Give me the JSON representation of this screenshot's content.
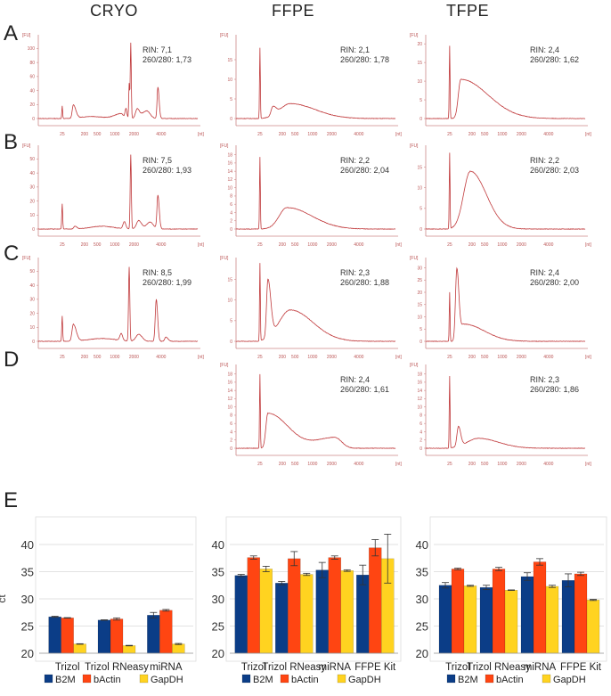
{
  "columns": [
    "CRYO",
    "FFPE",
    "TFPE"
  ],
  "rows": [
    "A",
    "B",
    "C",
    "D"
  ],
  "panel_e_label": "E",
  "chart_data": {
    "electropherograms": {
      "type": "line",
      "ylabel": "[FU]",
      "xlabel": "[nt]",
      "x_tick_labels": [
        "25",
        "200",
        "500",
        "1000",
        "2000",
        "4000"
      ],
      "x_tick_positions": [
        15,
        29,
        37,
        48,
        60,
        77
      ],
      "x_range": [
        0,
        100
      ],
      "line_color": "#c0393b",
      "panels": [
        {
          "row": 0,
          "col": 0,
          "rin": "RIN: 7,1",
          "ratio": "260/280: 1,73",
          "ylim": [
            0,
            112
          ],
          "yticks": [
            0,
            20,
            40,
            60,
            80,
            100
          ],
          "peaks": [
            [
              15,
              18,
              0.35,
              0.35
            ],
            [
              22,
              19,
              1.0,
              2.2
            ],
            [
              33,
              3,
              8,
              10
            ],
            [
              52,
              7,
              6,
              2
            ],
            [
              55,
              14,
              0.8,
              0.8
            ],
            [
              58,
              108,
              0.45,
              0.45
            ],
            [
              57,
              50,
              0.4,
              0.4
            ],
            [
              62,
              13,
              1.5,
              2
            ],
            [
              68,
              11,
              4,
              3
            ],
            [
              75,
              45,
              0.7,
              1.1
            ]
          ]
        },
        {
          "row": 0,
          "col": 1,
          "rin": "RIN: 2,1",
          "ratio": "260/280: 1,78",
          "ylim": [
            0,
            20
          ],
          "yticks": [
            0,
            5,
            10,
            15
          ],
          "peaks": [
            [
              15,
              18,
              0.35,
              0.35
            ],
            [
              23,
              2.2,
              1.5,
              3
            ],
            [
              34,
              3.8,
              9,
              22
            ]
          ]
        },
        {
          "row": 0,
          "col": 2,
          "rin": "RIN: 2,4",
          "ratio": "260/280: 1,62",
          "ylim": [
            0,
            21
          ],
          "yticks": [
            0,
            5,
            10,
            15,
            20
          ],
          "peaks": [
            [
              15,
              19.5,
              0.35,
              0.35
            ],
            [
              22,
              10.5,
              2.2,
              24
            ]
          ]
        },
        {
          "row": 1,
          "col": 0,
          "rin": "RIN: 7,5",
          "ratio": "260/280: 1,93",
          "ylim": [
            0,
            56
          ],
          "yticks": [
            0,
            10,
            20,
            30,
            40,
            50
          ],
          "peaks": [
            [
              15,
              18,
              0.4,
              0.4
            ],
            [
              23,
              2,
              1,
              1.5
            ],
            [
              40,
              2,
              10,
              10
            ],
            [
              54,
              5,
              1.2,
              1.2
            ],
            [
              58,
              53,
              0.5,
              0.5
            ],
            [
              63,
              6,
              2,
              2.5
            ],
            [
              70,
              5,
              3,
              3
            ],
            [
              75,
              24,
              0.8,
              1.2
            ]
          ]
        },
        {
          "row": 1,
          "col": 1,
          "rin": "RIN: 2,2",
          "ratio": "260/280: 2,04",
          "ylim": [
            0,
            19
          ],
          "yticks": [
            0,
            2,
            4,
            6,
            8,
            10,
            12,
            14,
            16,
            18
          ],
          "peaks": [
            [
              15,
              17.5,
              0.35,
              0.35
            ],
            [
              32,
              5.2,
              7,
              22
            ]
          ]
        },
        {
          "row": 1,
          "col": 2,
          "rin": "RIN: 2,2",
          "ratio": "260/280: 2,03",
          "ylim": [
            0,
            19
          ],
          "yticks": [
            0,
            5,
            10,
            15
          ],
          "peaks": [
            [
              15,
              18.5,
              0.35,
              0.35
            ],
            [
              28,
              14,
              6,
              14
            ]
          ]
        },
        {
          "row": 2,
          "col": 0,
          "rin": "RIN: 8,5",
          "ratio": "260/280: 1,99",
          "ylim": [
            0,
            56
          ],
          "yticks": [
            0,
            10,
            20,
            30,
            40,
            50
          ],
          "peaks": [
            [
              15,
              18,
              0.4,
              0.4
            ],
            [
              22,
              12,
              1.2,
              2.5
            ],
            [
              40,
              2,
              12,
              12
            ],
            [
              52,
              5,
              1.2,
              1.2
            ],
            [
              57,
              53,
              0.55,
              0.55
            ],
            [
              63,
              5,
              2.5,
              3
            ],
            [
              74,
              30,
              0.9,
              1.2
            ],
            [
              80,
              3,
              1,
              2
            ]
          ]
        },
        {
          "row": 2,
          "col": 1,
          "rin": "RIN: 2,3",
          "ratio": "260/280: 1,88",
          "ylim": [
            0,
            19
          ],
          "yticks": [
            0,
            5,
            10,
            15
          ],
          "peaks": [
            [
              15,
              19,
              0.35,
              0.35
            ],
            [
              20,
              14,
              1.2,
              2.5
            ],
            [
              34,
              7.6,
              10,
              20
            ]
          ]
        },
        {
          "row": 2,
          "col": 2,
          "rin": "RIN: 2,4",
          "ratio": "260/280: 2,00",
          "ylim": [
            0,
            32
          ],
          "yticks": [
            0,
            5,
            10,
            15,
            20,
            25,
            30
          ],
          "peaks": [
            [
              15,
              20,
              0.35,
              0.35
            ],
            [
              19.5,
              29,
              1.2,
              1.8
            ],
            [
              24,
              7,
              3,
              18
            ]
          ]
        },
        {
          "row": 3,
          "col": 1,
          "rin": "RIN: 2,4",
          "ratio": "260/280: 1,61",
          "ylim": [
            0,
            19
          ],
          "yticks": [
            0,
            2,
            4,
            6,
            8,
            10,
            12,
            14,
            16,
            18
          ],
          "peaks": [
            [
              15,
              18,
              0.35,
              0.35
            ],
            [
              20,
              8.5,
              1.8,
              18
            ],
            [
              62,
              2.6,
              16,
              6
            ]
          ]
        },
        {
          "row": 3,
          "col": 2,
          "rin": "RIN: 2,3",
          "ratio": "260/280: 1,86",
          "ylim": [
            0,
            19
          ],
          "yticks": [
            0,
            2,
            4,
            6,
            8,
            10,
            12,
            14,
            16,
            18
          ],
          "peaks": [
            [
              15,
              17.5,
              0.35,
              0.35
            ],
            [
              20.5,
              4.8,
              1.3,
              2
            ],
            [
              33,
              2.4,
              10,
              18
            ]
          ]
        }
      ]
    },
    "bar_charts": [
      {
        "type": "bar",
        "ylabel": "ct",
        "ylim": [
          20,
          42
        ],
        "yticks": [
          20,
          25,
          30,
          35,
          40
        ],
        "categories": [
          "Trizol",
          "Trizol RNeasy",
          "miRNA"
        ],
        "series": [
          {
            "name": "B2M",
            "color": "#0b3d87",
            "values": [
              26.7,
              26.1,
              27.0
            ],
            "errors": [
              0.1,
              0.05,
              0.5
            ]
          },
          {
            "name": "bActin",
            "color": "#ff4512",
            "values": [
              26.5,
              26.3,
              27.9
            ],
            "errors": [
              0.05,
              0.2,
              0.15
            ]
          },
          {
            "name": "GapDH",
            "color": "#ffd320",
            "values": [
              21.7,
              21.4,
              21.7
            ],
            "errors": [
              0.05,
              0.05,
              0.1
            ]
          }
        ]
      },
      {
        "type": "bar",
        "ylabel": "",
        "ylim": [
          20,
          42
        ],
        "yticks": [
          20,
          25,
          30,
          35,
          40
        ],
        "categories": [
          "Trizol",
          "Trizol RNeasy",
          "miRNA",
          "FFPE Kit"
        ],
        "series": [
          {
            "name": "B2M",
            "color": "#0b3d87",
            "values": [
              34.3,
              32.9,
              35.3,
              34.4
            ],
            "errors": [
              0.2,
              0.3,
              1.4,
              1.8
            ]
          },
          {
            "name": "bActin",
            "color": "#ff4512",
            "values": [
              37.6,
              37.4,
              37.6,
              39.4
            ],
            "errors": [
              0.3,
              1.3,
              0.3,
              1.5
            ]
          },
          {
            "name": "GapDH",
            "color": "#ffd320",
            "values": [
              35.5,
              34.5,
              35.2,
              37.4
            ],
            "errors": [
              0.5,
              0.2,
              0.15,
              4.5
            ]
          }
        ]
      },
      {
        "type": "bar",
        "ylabel": "",
        "ylim": [
          20,
          42
        ],
        "yticks": [
          20,
          25,
          30,
          35,
          40
        ],
        "categories": [
          "Trizol",
          "Trizol RNeasy",
          "miRNA",
          "FFPE Kit"
        ],
        "series": [
          {
            "name": "B2M",
            "color": "#0b3d87",
            "values": [
              32.5,
              32.1,
              34.1,
              33.4
            ],
            "errors": [
              0.5,
              0.4,
              0.7,
              1.2
            ]
          },
          {
            "name": "bActin",
            "color": "#ff4512",
            "values": [
              35.5,
              35.5,
              36.8,
              34.6
            ],
            "errors": [
              0.15,
              0.3,
              0.6,
              0.3
            ]
          },
          {
            "name": "GapDH",
            "color": "#ffd320",
            "values": [
              32.4,
              31.6,
              32.3,
              29.8
            ],
            "errors": [
              0.1,
              0.05,
              0.2,
              0.1
            ]
          }
        ]
      }
    ]
  }
}
